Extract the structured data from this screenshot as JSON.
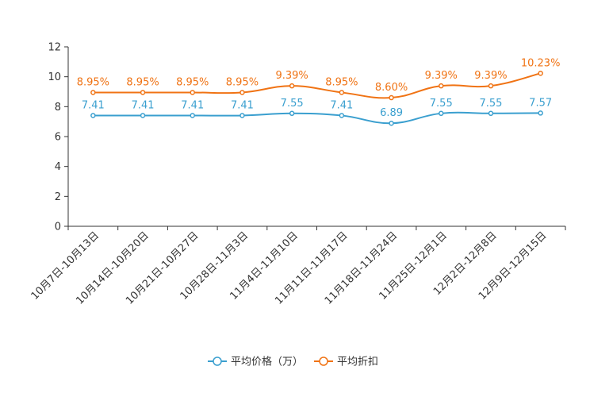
{
  "chart_data": {
    "type": "line",
    "categories": [
      "10月7日-10月13日",
      "10月14日-10月20日",
      "10月21日-10月27日",
      "10月28日-11月3日",
      "11月4日-11月10日",
      "11月11日-11月17日",
      "11月18日-11月24日",
      "11月25日-12月1日",
      "12月2日-12月8日",
      "12月9日-12月15日"
    ],
    "ylim": [
      0,
      12
    ],
    "yticks": [
      0,
      2,
      4,
      6,
      8,
      10,
      12
    ],
    "series": [
      {
        "name": "平均价格（万）",
        "color": "#3a9fcf",
        "values": [
          7.41,
          7.41,
          7.41,
          7.41,
          7.55,
          7.41,
          6.89,
          7.55,
          7.55,
          7.57
        ],
        "labels": [
          "7.41",
          "7.41",
          "7.41",
          "7.41",
          "7.55",
          "7.41",
          "6.89",
          "7.55",
          "7.55",
          "7.57"
        ]
      },
      {
        "name": "平均折扣",
        "color": "#f07314",
        "values": [
          8.95,
          8.95,
          8.95,
          8.95,
          9.39,
          8.95,
          8.6,
          9.39,
          9.39,
          10.23
        ],
        "labels": [
          "8.95%",
          "8.95%",
          "8.95%",
          "8.95%",
          "9.39%",
          "8.95%",
          "8.60%",
          "9.39%",
          "9.39%",
          "10.23%"
        ]
      }
    ],
    "legend_position": "bottom-center"
  }
}
